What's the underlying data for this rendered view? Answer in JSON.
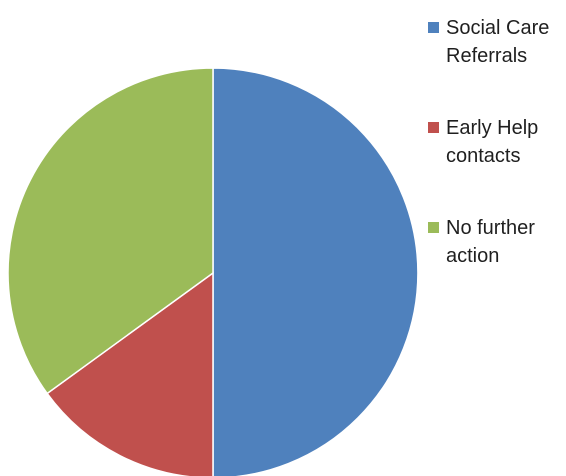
{
  "chart_data": {
    "type": "pie",
    "title": "",
    "slices": [
      {
        "label": "Social Care Referrals",
        "value": 50,
        "color": "#4f81bd"
      },
      {
        "label": "Early Help contacts",
        "value": 15,
        "color": "#c0504d"
      },
      {
        "label": "No further action",
        "value": 35,
        "color": "#9bbb59"
      }
    ],
    "start_angle_deg": 0,
    "direction": "clockwise",
    "legend_position": "right"
  },
  "legend": {
    "items": [
      {
        "label": "Social Care Referrals",
        "color": "#4f81bd"
      },
      {
        "label": "Early Help contacts",
        "color": "#c0504d"
      },
      {
        "label": "No further action",
        "color": "#9bbb59"
      }
    ]
  }
}
